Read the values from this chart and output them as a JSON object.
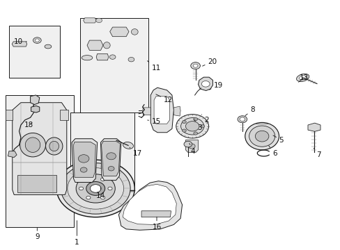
{
  "bg_color": "#ffffff",
  "fig_width": 4.89,
  "fig_height": 3.6,
  "dpi": 100,
  "lc": "#1a1a1a",
  "lw": 0.7,
  "font_size": 7.5,
  "boxes": {
    "b9": [
      0.015,
      0.09,
      0.215,
      0.62
    ],
    "b10": [
      0.025,
      0.69,
      0.175,
      0.9
    ],
    "b11": [
      0.235,
      0.55,
      0.435,
      0.93
    ],
    "b14": [
      0.205,
      0.25,
      0.395,
      0.55
    ]
  },
  "labels": {
    "1": [
      0.225,
      0.03,
      0.225,
      0.12,
      "center"
    ],
    "2": [
      0.6,
      0.52,
      0.59,
      0.545,
      "left"
    ],
    "3": [
      0.58,
      0.49,
      0.568,
      0.525,
      "left"
    ],
    "4": [
      0.56,
      0.395,
      0.555,
      0.43,
      "left"
    ],
    "5": [
      0.82,
      0.44,
      0.8,
      0.46,
      "left"
    ],
    "6": [
      0.8,
      0.385,
      0.788,
      0.42,
      "left"
    ],
    "7": [
      0.93,
      0.38,
      0.92,
      0.41,
      "left"
    ],
    "8": [
      0.735,
      0.56,
      0.718,
      0.535,
      "left"
    ],
    "9": [
      0.108,
      0.05,
      0.108,
      0.09,
      "center"
    ],
    "10": [
      0.04,
      0.835,
      0.08,
      0.835,
      "left"
    ],
    "11": [
      0.445,
      0.73,
      0.43,
      0.76,
      "left"
    ],
    "12": [
      0.48,
      0.6,
      0.455,
      0.625,
      "left"
    ],
    "13": [
      0.88,
      0.69,
      0.875,
      0.67,
      "left"
    ],
    "14": [
      0.295,
      0.215,
      0.295,
      0.255,
      "center"
    ],
    "15": [
      0.445,
      0.515,
      0.43,
      0.52,
      "left"
    ],
    "16": [
      0.46,
      0.09,
      0.46,
      0.135,
      "center"
    ],
    "17": [
      0.39,
      0.385,
      0.38,
      0.41,
      "left"
    ],
    "18": [
      0.07,
      0.5,
      0.095,
      0.51,
      "left"
    ],
    "19": [
      0.628,
      0.66,
      0.612,
      0.64,
      "left"
    ],
    "20": [
      0.61,
      0.755,
      0.592,
      0.735,
      "left"
    ]
  }
}
